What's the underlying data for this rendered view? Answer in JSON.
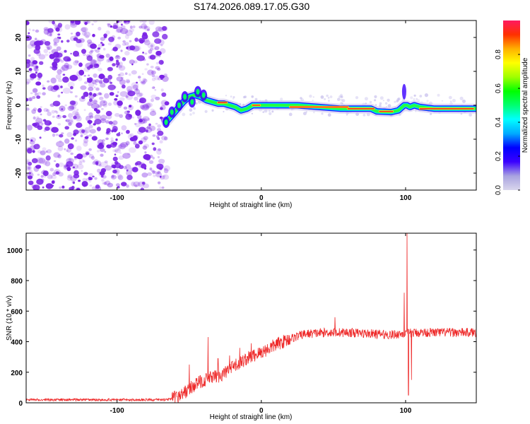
{
  "figure": {
    "title": "S174.2026.089.17.05.G30",
    "colors": {
      "frame": "#000000",
      "snr_line": "#ee2a2a",
      "noise_dots": "#7a22e6"
    }
  },
  "chart_data": [
    {
      "type": "heatmap",
      "name": "spectrogram",
      "xlabel": "Height of straight line (km)",
      "ylabel": "Frequency (Hz)",
      "xlim": [
        -163,
        149
      ],
      "ylim": [
        -25,
        25
      ],
      "xticks": [
        -100,
        0,
        100
      ],
      "xtick_labels": [
        "-100",
        "0",
        "100"
      ],
      "yticks": [
        20,
        10,
        0,
        -10,
        -20
      ],
      "ytick_labels": [
        "20",
        "10",
        "0",
        "-10",
        "-20"
      ],
      "noise_region_x": [
        -163,
        -68
      ],
      "ridge": [
        [
          -66,
          -5
        ],
        [
          -62,
          -3
        ],
        [
          -58,
          -1
        ],
        [
          -54,
          1
        ],
        [
          -50,
          2.5
        ],
        [
          -46,
          3
        ],
        [
          -42,
          2.5
        ],
        [
          -38,
          1.5
        ],
        [
          -34,
          1
        ],
        [
          -30,
          0.5
        ],
        [
          -26,
          0.5
        ],
        [
          -22,
          0
        ],
        [
          -18,
          -0.5
        ],
        [
          -14,
          -1.5
        ],
        [
          -10,
          -1
        ],
        [
          -6,
          0
        ],
        [
          -2,
          0
        ],
        [
          5,
          0
        ],
        [
          15,
          0
        ],
        [
          25,
          0
        ],
        [
          40,
          -0.5
        ],
        [
          55,
          -1
        ],
        [
          70,
          -1
        ],
        [
          76,
          -1
        ],
        [
          80,
          -1.8
        ],
        [
          90,
          -2
        ],
        [
          95,
          -1.5
        ],
        [
          99,
          0
        ],
        [
          101,
          0
        ],
        [
          103,
          -0.5
        ],
        [
          106,
          0
        ],
        [
          110,
          -0.5
        ],
        [
          120,
          -1
        ],
        [
          149,
          -1
        ]
      ],
      "colorbar": {
        "label": "Normalized spectral amplitude",
        "range": [
          0,
          1
        ],
        "ticks": [
          0.0,
          0.2,
          0.4,
          0.6,
          0.8
        ],
        "tick_labels": [
          "0.0",
          "0.2",
          "0.4",
          "0.6",
          "0.8"
        ],
        "stops": [
          "#d9d6ec",
          "#a9a3e0",
          "#3a00ff",
          "#0000ff",
          "#00aaff",
          "#00ffff",
          "#00ff70",
          "#00ff00",
          "#a0ff00",
          "#ffff00",
          "#ffb000",
          "#ff3000",
          "#ff1a60"
        ]
      }
    },
    {
      "type": "line",
      "name": "snr",
      "xlabel": "Height of straight line (km)",
      "ylabel": "SNR (10 * v/v)",
      "xlim": [
        -163,
        149
      ],
      "ylim": [
        0,
        1110
      ],
      "xticks": [
        -100,
        0,
        100
      ],
      "xtick_labels": [
        "-100",
        "0",
        "100"
      ],
      "yticks": [
        0,
        200,
        400,
        600,
        800,
        1000
      ],
      "ytick_labels": [
        "0",
        "200",
        "400",
        "600",
        "800",
        "1000"
      ],
      "trend": [
        [
          -163,
          20
        ],
        [
          -70,
          20
        ],
        [
          -62,
          25
        ],
        [
          -56,
          50
        ],
        [
          -50,
          90
        ],
        [
          -44,
          130
        ],
        [
          -36,
          160
        ],
        [
          -28,
          180
        ],
        [
          -20,
          230
        ],
        [
          -10,
          290
        ],
        [
          0,
          330
        ],
        [
          10,
          380
        ],
        [
          20,
          420
        ],
        [
          30,
          450
        ],
        [
          45,
          460
        ],
        [
          60,
          460
        ],
        [
          80,
          450
        ],
        [
          90,
          445
        ],
        [
          95,
          450
        ],
        [
          100,
          455
        ],
        [
          110,
          460
        ],
        [
          149,
          460
        ]
      ],
      "spikes": [
        [
          -50,
          250
        ],
        [
          -37,
          430
        ],
        [
          -30,
          290
        ],
        [
          -22,
          310
        ],
        [
          -15,
          360
        ],
        [
          -7,
          390
        ],
        [
          51,
          560
        ],
        [
          99,
          720
        ],
        [
          101,
          1110
        ],
        [
          102,
          50
        ],
        [
          104,
          150
        ]
      ]
    }
  ]
}
